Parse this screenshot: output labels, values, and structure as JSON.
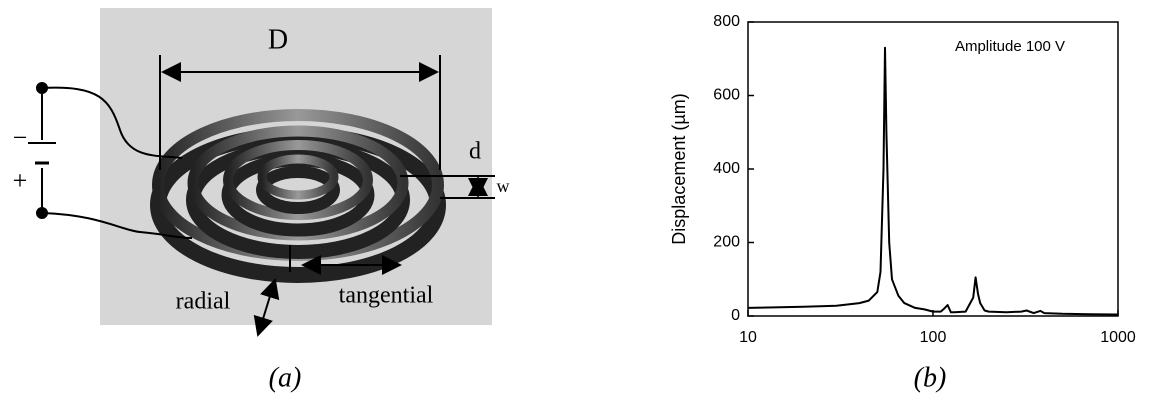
{
  "figure_a": {
    "D": "D",
    "d": "d",
    "w": "w",
    "minus": "−",
    "plus": "+",
    "radial": "radial",
    "tangential": "tangential",
    "caption": "(a)"
  },
  "chart_data": {
    "type": "line",
    "ylabel": "Displacement (µm)",
    "annotation": "Amplitude 100 V",
    "caption": "(b)",
    "x": [
      10,
      20,
      30,
      40,
      45,
      50,
      52,
      54,
      55,
      56,
      58,
      60,
      65,
      70,
      80,
      90,
      100,
      110,
      115,
      120,
      125,
      130,
      150,
      165,
      170,
      175,
      180,
      190,
      200,
      250,
      300,
      320,
      350,
      380,
      400,
      500,
      700,
      1000
    ],
    "values": [
      22,
      25,
      28,
      35,
      42,
      65,
      120,
      400,
      730,
      500,
      200,
      100,
      55,
      35,
      22,
      18,
      12,
      12,
      20,
      30,
      10,
      10,
      12,
      50,
      105,
      60,
      35,
      15,
      12,
      10,
      12,
      15,
      8,
      14,
      8,
      6,
      5,
      4
    ],
    "color": "#000000",
    "xlog": true,
    "xlim": [
      10,
      1000
    ],
    "xticks": [
      10,
      100,
      1000
    ],
    "ylim": [
      0,
      800
    ],
    "yticks": [
      0,
      200,
      400,
      600,
      800
    ]
  }
}
